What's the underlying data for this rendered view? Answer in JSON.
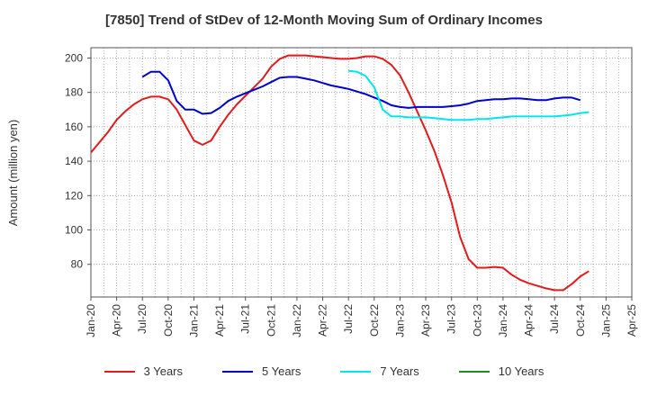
{
  "chart_data": {
    "type": "line",
    "title": "[7850]  Trend of StDev of 12-Month Moving Sum of Ordinary Incomes",
    "ylabel": "Amount (million yen)",
    "xlabel": "",
    "ylim": [
      61,
      206
    ],
    "yticks": [
      80,
      100,
      120,
      140,
      160,
      180,
      200
    ],
    "x_range": [
      "Jan-20",
      "Apr-25"
    ],
    "xticks": [
      "Jan-20",
      "Apr-20",
      "Jul-20",
      "Oct-20",
      "Jan-21",
      "Apr-21",
      "Jul-21",
      "Oct-21",
      "Jan-22",
      "Apr-22",
      "Jul-22",
      "Oct-22",
      "Jan-23",
      "Apr-23",
      "Jul-23",
      "Oct-23",
      "Jan-24",
      "Apr-24",
      "Jul-24",
      "Oct-24",
      "Jan-25",
      "Apr-25"
    ],
    "grid": true,
    "legend_position": "bottom",
    "series": [
      {
        "name": "3 Years",
        "color": "#e31a1c",
        "start": "Jan-20",
        "values": [
          145,
          151,
          157,
          164,
          169,
          173,
          176,
          177.5,
          177.5,
          176,
          170,
          161,
          152,
          149.5,
          152,
          160,
          167,
          173,
          178,
          183,
          188,
          195,
          199.5,
          201.5,
          201.5,
          201.5,
          201,
          200.5,
          200,
          199.5,
          199.5,
          200,
          201,
          201,
          199.5,
          196,
          190,
          180,
          169,
          158,
          146,
          132,
          116,
          96,
          83,
          78,
          78,
          78.5,
          78,
          74,
          71,
          69,
          67.5,
          66,
          65,
          65,
          68.5,
          73,
          76
        ]
      },
      {
        "name": "5 Years",
        "color": "#0000cc",
        "start": "Jul-20",
        "values": [
          189,
          192,
          192,
          187,
          175,
          170,
          170,
          167.5,
          168,
          171,
          175,
          177.5,
          179.5,
          181.5,
          183.5,
          186,
          188.5,
          189,
          189,
          188,
          187,
          185.5,
          184,
          183,
          182,
          180.5,
          179,
          177,
          175,
          172.5,
          171.5,
          171,
          171.5,
          171.5,
          171.5,
          171.5,
          172,
          172.5,
          173.5,
          175,
          175.5,
          176,
          176,
          176.5,
          176.5,
          176,
          175.5,
          175.5,
          176.5,
          177,
          177,
          175.5
        ]
      },
      {
        "name": "7 Years",
        "color": "#00e5ee",
        "start": "Jul-22",
        "values": [
          192.5,
          192,
          189.5,
          183,
          170,
          166,
          166,
          165.5,
          165.5,
          165.5,
          165,
          164.5,
          164,
          164,
          164,
          164.5,
          164.5,
          165,
          165.5,
          166,
          166,
          166,
          166,
          166,
          166,
          166.5,
          167,
          168,
          168.5
        ]
      },
      {
        "name": "10 Years",
        "color": "#228b22",
        "start": "Jan-20",
        "values": []
      }
    ]
  }
}
